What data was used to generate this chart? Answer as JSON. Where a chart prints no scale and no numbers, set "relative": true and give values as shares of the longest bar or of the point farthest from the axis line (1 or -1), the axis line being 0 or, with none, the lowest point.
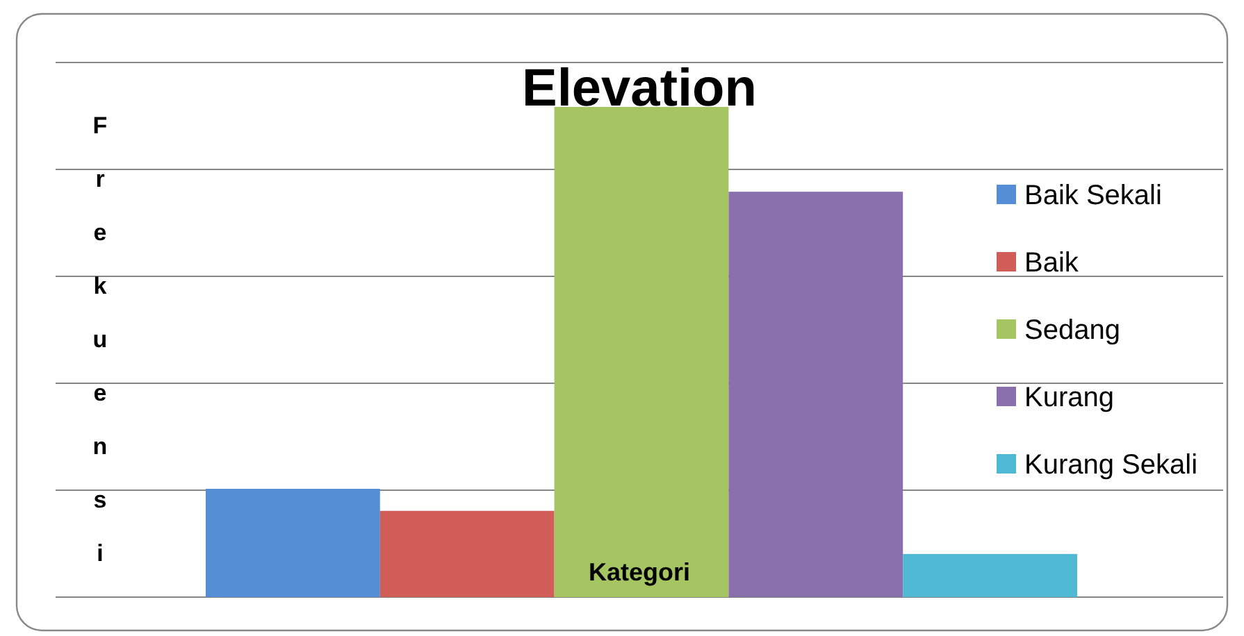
{
  "chart_data": {
    "type": "bar",
    "title": "Elevation",
    "xlabel": "Kategori",
    "ylabel": "Frekuensi",
    "categories": [
      null
    ],
    "series": [
      {
        "name": "Baik Sekali",
        "color": "#558ed5",
        "values": [
          0.221
        ]
      },
      {
        "name": "Baik",
        "color": "#d05d58",
        "values": [
          0.176
        ]
      },
      {
        "name": "Sedang",
        "color": "#a5c462",
        "values": [
          1
        ]
      },
      {
        "name": "Kurang",
        "color": "#8a6fad",
        "values": [
          0.827
        ]
      },
      {
        "name": "Kurang Sekali",
        "color": "#4fb8d2",
        "values": [
          0.088
        ]
      }
    ],
    "relative": true,
    "grid": "y",
    "legend": "right"
  }
}
